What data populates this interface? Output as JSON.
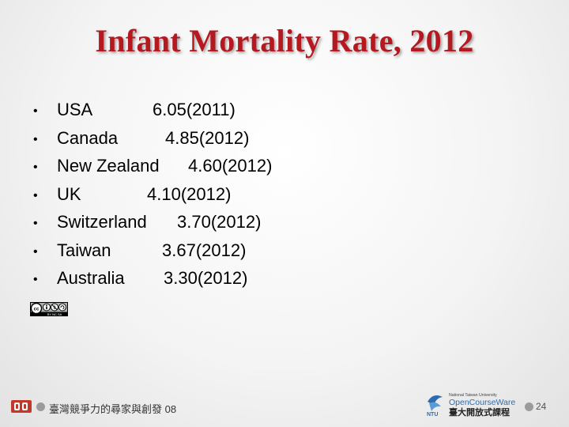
{
  "slide": {
    "title": "Infant Mortality Rate, 2012",
    "items": [
      {
        "country": "USA",
        "value": "6.05(2011)"
      },
      {
        "country": "Canada",
        "value": "4.85(2012)"
      },
      {
        "country": "New Zealand",
        "value": "4.60(2012)"
      },
      {
        "country": "UK",
        "value": "4.10(2012)"
      },
      {
        "country": "Switzerland",
        "value": "3.70(2012)"
      },
      {
        "country": "Taiwan",
        "value": "3.67(2012)"
      },
      {
        "country": "Australia",
        "value": "3.30(2012)"
      }
    ]
  },
  "footer": {
    "text": "臺灣競爭力的尋家與創發 08",
    "page_number": "24",
    "ntu_line1": "National Taiwan University",
    "ntu_line2": "OpenCourseWare",
    "ntu_line3": "臺大開放式課程",
    "ntu_abbr": "NTU",
    "cc_label": "cc",
    "cc_sub": "BY  NC  SA"
  },
  "colors": {
    "title": "#b5181f",
    "ntu_blue": "#2b6cb0",
    "logo_red": "#c0392b"
  }
}
